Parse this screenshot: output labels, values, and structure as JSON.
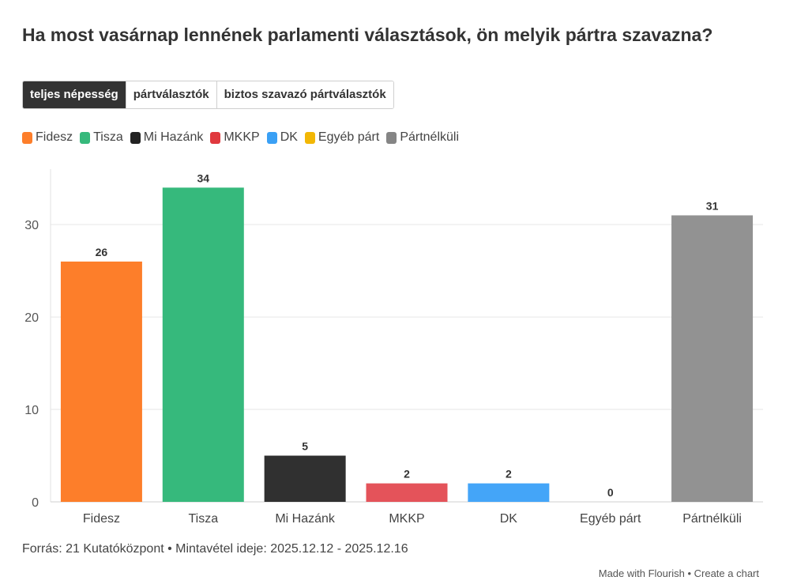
{
  "title": "Ha most vasárnap lennének parlamenti választások, ön melyik pártra szavazna?",
  "tabs": [
    {
      "label": "teljes népesség",
      "active": true
    },
    {
      "label": "pártválasztók",
      "active": false
    },
    {
      "label": "biztos szavazó pártválasztók",
      "active": false
    }
  ],
  "legend": [
    {
      "label": "Fidesz",
      "color": "#fd7e2a"
    },
    {
      "label": "Tisza",
      "color": "#36b97c"
    },
    {
      "label": "Mi Hazánk",
      "color": "#222222"
    },
    {
      "label": "MKKP",
      "color": "#e0393e"
    },
    {
      "label": "DK",
      "color": "#3aa0f5"
    },
    {
      "label": "Egyéb párt",
      "color": "#f2b705"
    },
    {
      "label": "Pártnélküli",
      "color": "#858585"
    }
  ],
  "chart_data": {
    "type": "bar",
    "title": "Ha most vasárnap lennének parlamenti választások, ön melyik pártra szavazna?",
    "categories": [
      "Fidesz",
      "Tisza",
      "Mi Hazánk",
      "MKKP",
      "DK",
      "Egyéb párt",
      "Pártnélküli"
    ],
    "values": [
      26,
      34,
      5,
      2,
      2,
      0,
      31
    ],
    "data_labels": [
      "26",
      "34",
      "5",
      "2",
      "2",
      "0",
      "31"
    ],
    "colors": [
      "#fd7e2a",
      "#36b97c",
      "#303030",
      "#e4535a",
      "#44a5f8",
      "#f2b705",
      "#929292"
    ],
    "y_ticks": [
      0,
      10,
      20,
      30
    ],
    "ylim": [
      0,
      36
    ],
    "xlabel": "",
    "ylabel": "",
    "grid": true
  },
  "footer": {
    "source": "Forrás: 21 Kutatóközpont • Mintavétel ideje: 2025.12.12 - 2025.12.16",
    "made_with": "Made with Flourish",
    "separator": " • ",
    "create": "Create a chart"
  }
}
